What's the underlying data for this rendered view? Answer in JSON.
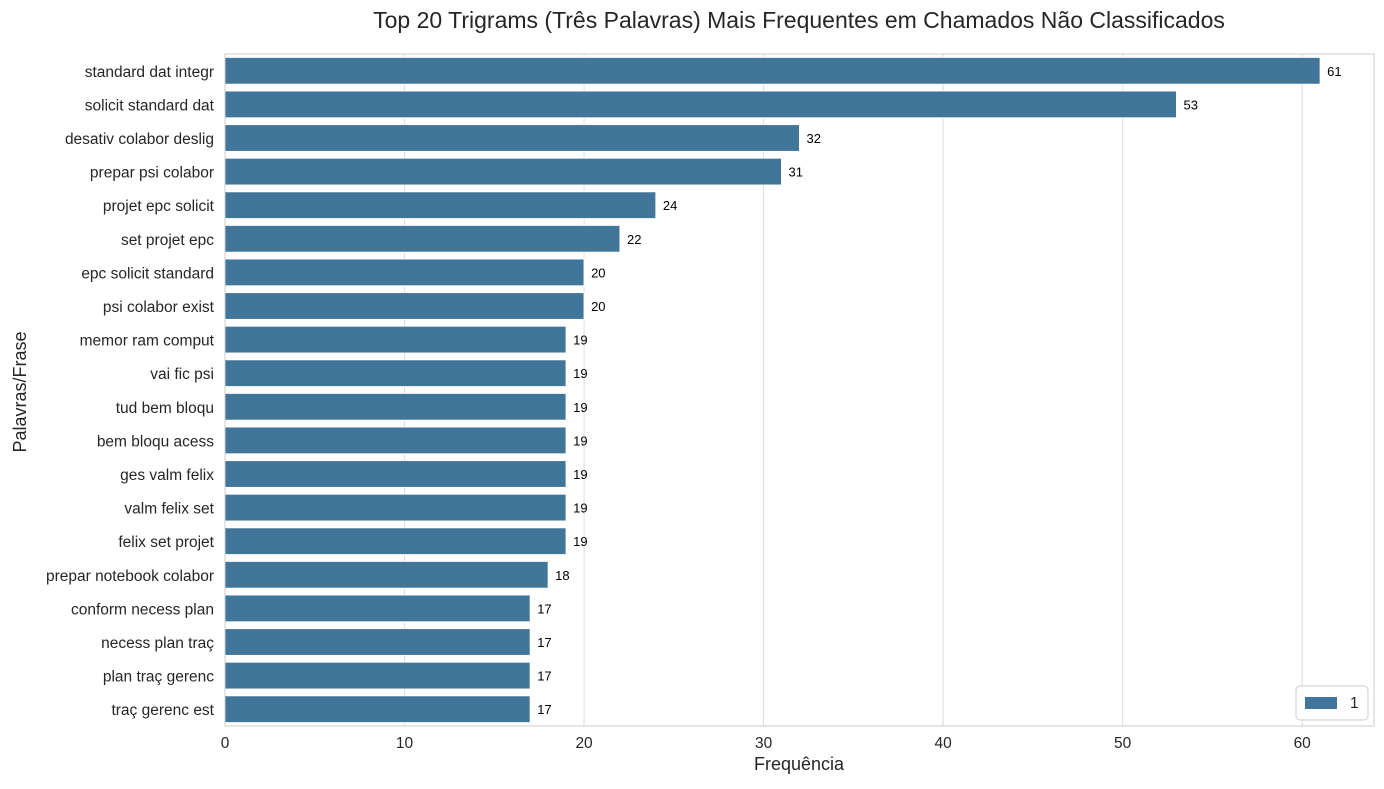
{
  "chart_data": {
    "type": "bar",
    "orientation": "horizontal",
    "title": "Top 20 Trigrams (Três Palavras) Mais Frequentes em Chamados Não Classificados",
    "xlabel": "Frequência",
    "ylabel": "Palavras/Frase",
    "xlim": [
      0,
      64
    ],
    "xticks": [
      0,
      10,
      20,
      30,
      40,
      50,
      60
    ],
    "grid": "vertical",
    "legend": {
      "placement": "lower-right",
      "entries": [
        "1"
      ]
    },
    "bar_color": "#41769a",
    "categories": [
      "standard dat integr",
      "solicit standard dat",
      "desativ colabor deslig",
      "prepar psi colabor",
      "projet epc solicit",
      "set projet epc",
      "epc solicit standard",
      "psi colabor exist",
      "memor ram comput",
      "vai fic psi",
      "tud bem bloqu",
      "bem bloqu acess",
      "ges valm felix",
      "valm felix set",
      "felix set projet",
      "prepar notebook colabor",
      "conform necess plan",
      "necess plan traç",
      "plan traç gerenc",
      "traç gerenc est"
    ],
    "series": [
      {
        "name": "1",
        "values": [
          61,
          53,
          32,
          31,
          24,
          22,
          20,
          20,
          19,
          19,
          19,
          19,
          19,
          19,
          19,
          18,
          17,
          17,
          17,
          17
        ]
      }
    ]
  }
}
